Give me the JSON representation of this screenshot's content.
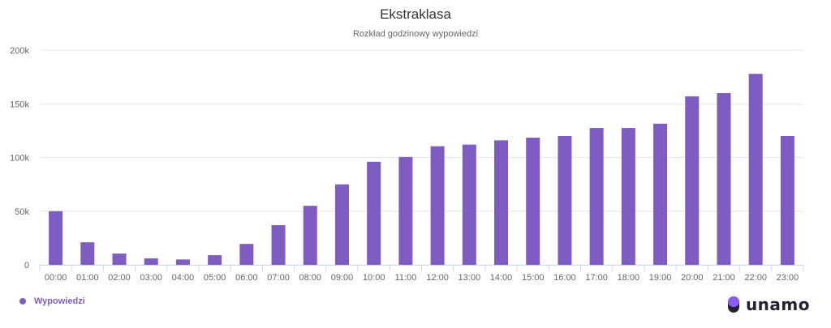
{
  "chart_data": {
    "type": "bar",
    "title": "Ekstraklasa",
    "subtitle": "Rozkład godzinowy wypowiedzi",
    "categories": [
      "00:00",
      "01:00",
      "02:00",
      "03:00",
      "04:00",
      "05:00",
      "06:00",
      "07:00",
      "08:00",
      "09:00",
      "10:00",
      "11:00",
      "12:00",
      "13:00",
      "14:00",
      "15:00",
      "16:00",
      "17:00",
      "18:00",
      "19:00",
      "20:00",
      "21:00",
      "22:00",
      "23:00"
    ],
    "series": [
      {
        "name": "Wypowiedzi",
        "values": [
          50000,
          21000,
          10500,
          6000,
          5000,
          9000,
          19500,
          37000,
          55000,
          75000,
          96000,
          100500,
          110500,
          112000,
          116000,
          118500,
          120000,
          127500,
          127500,
          131500,
          157000,
          160000,
          178000,
          120000
        ]
      }
    ],
    "y_ticks": [
      "0",
      "50k",
      "100k",
      "150k",
      "200k"
    ],
    "ylim": [
      0,
      200000
    ],
    "grid": true,
    "legend_position": "bottom-left",
    "bar_color": "#7e5cc2"
  },
  "legend": {
    "label": "Wypowiedzi"
  },
  "logo": {
    "text": "unamo"
  }
}
